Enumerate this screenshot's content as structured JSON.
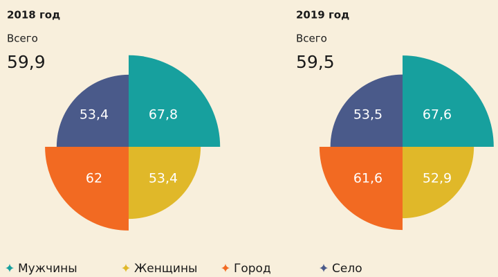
{
  "chart_data": [
    {
      "type": "polar-area",
      "title": "2018 год",
      "subtitle": "Всего",
      "total": "59,9",
      "categories": [
        "Мужчины",
        "Женщины",
        "Город",
        "Село"
      ],
      "values": [
        67.8,
        53.4,
        62,
        53.4
      ],
      "value_labels": [
        "67,8",
        "53,4",
        "62",
        "53,4"
      ],
      "colors": [
        "#17a09e",
        "#e0b829",
        "#f26a22",
        "#4a5a8a"
      ]
    },
    {
      "type": "polar-area",
      "title": "2019 год",
      "subtitle": "Всего",
      "total": "59,5",
      "categories": [
        "Мужчины",
        "Женщины",
        "Город",
        "Село"
      ],
      "values": [
        67.6,
        52.9,
        61.6,
        53.5
      ],
      "value_labels": [
        "67,6",
        "52,9",
        "61,6",
        "53,5"
      ],
      "colors": [
        "#17a09e",
        "#e0b829",
        "#f26a22",
        "#4a5a8a"
      ]
    }
  ]
}
